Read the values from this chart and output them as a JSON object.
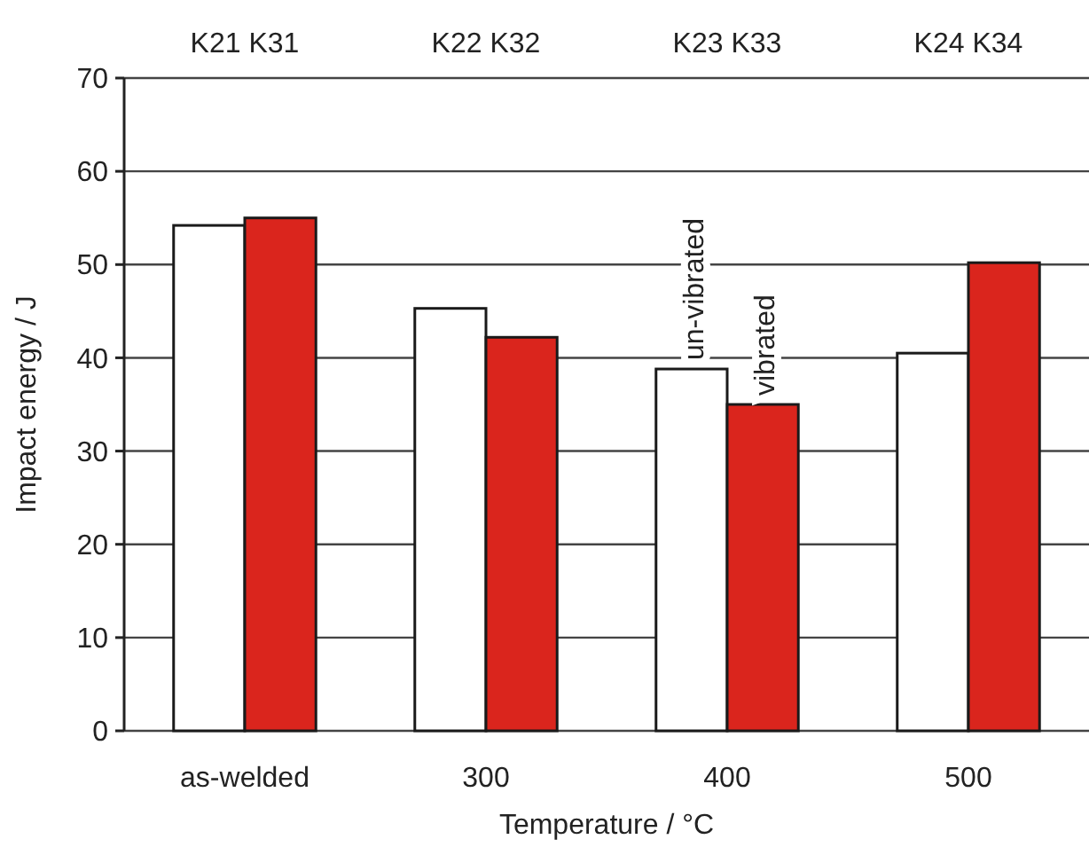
{
  "chart_data": {
    "type": "bar",
    "xlabel": "Temperature / °C",
    "ylabel": "Impact energy / J",
    "categories": [
      "as-welded",
      "300",
      "400",
      "500"
    ],
    "series": [
      {
        "name": "un-vibrated",
        "color": "#ffffff",
        "values": [
          54.2,
          45.3,
          38.8,
          40.5
        ]
      },
      {
        "name": "vibrated",
        "color": "#da251d",
        "values": [
          55.0,
          42.2,
          35.0,
          50.2
        ]
      }
    ],
    "annotations": [
      "K21 K31",
      "K22 K32",
      "K23 K33",
      "K24 K34"
    ],
    "ylim": [
      0,
      70
    ],
    "yticks": [
      0,
      10,
      20,
      30,
      40,
      50,
      60,
      70
    ],
    "grid": "y",
    "legend": "top"
  }
}
